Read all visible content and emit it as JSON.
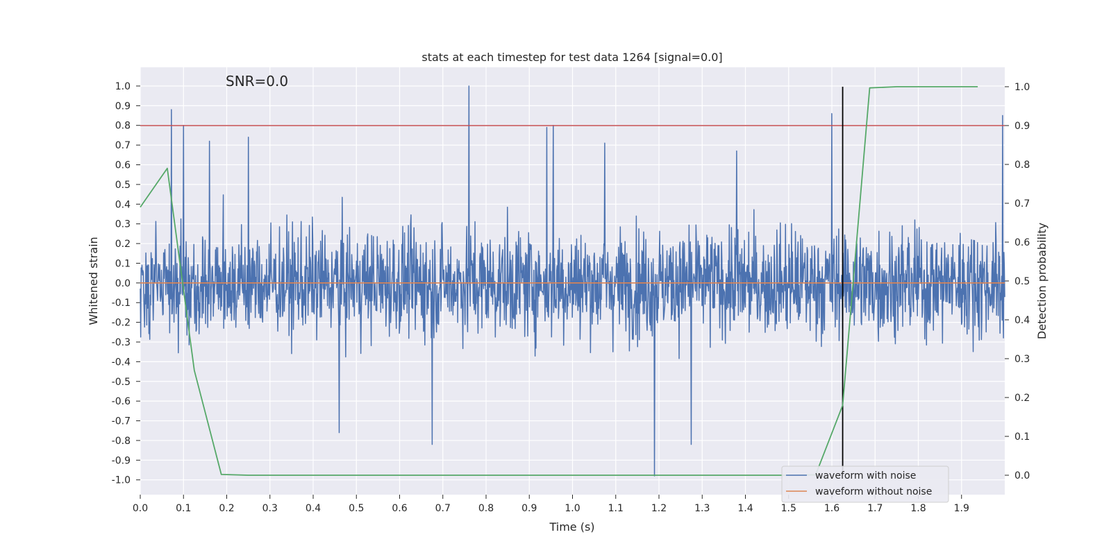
{
  "chart_data": {
    "type": "line",
    "title": "stats at each timestep for test data 1264 [signal=0.0]",
    "xlabel": "Time (s)",
    "ylabel": "Whitened strain",
    "y2label": "Detection probability",
    "annotation": "SNR=0.0",
    "xlim": [
      0.0,
      2.0
    ],
    "ylim": [
      -1.075,
      1.095
    ],
    "y2lim": [
      -0.05,
      1.05
    ],
    "x_ticks": [
      "0.0",
      "0.1",
      "0.2",
      "0.3",
      "0.4",
      "0.5",
      "0.6",
      "0.7",
      "0.8",
      "0.9",
      "1.0",
      "1.1",
      "1.2",
      "1.3",
      "1.4",
      "1.5",
      "1.6",
      "1.7",
      "1.8",
      "1.9"
    ],
    "y_ticks": [
      "1.0",
      "0.9",
      "0.8",
      "0.7",
      "0.6",
      "0.5",
      "0.4",
      "0.3",
      "0.2",
      "0.1",
      "0.0",
      "-0.1",
      "-0.2",
      "-0.3",
      "-0.4",
      "-0.5",
      "-0.6",
      "-0.7",
      "-0.8",
      "-0.9",
      "-1.0"
    ],
    "y2_ticks": [
      "0.0",
      "0.1",
      "0.2",
      "0.3",
      "0.4",
      "0.5",
      "0.6",
      "0.7",
      "0.8",
      "0.9",
      "1.0"
    ],
    "grid": true,
    "legend_position": "bottom-right",
    "threshold_line": {
      "y2": 0.9,
      "color": "#c44e52"
    },
    "vertical_marker": {
      "x": 1.625,
      "y2": [
        0.0,
        1.0
      ],
      "color": "#000000"
    },
    "series": [
      {
        "name": "waveform with noise",
        "color": "#4c72b0",
        "axis": "left",
        "note": "dense noise trace, ~2000 samples",
        "highlights": [
          {
            "x": 0.072,
            "y": 0.88
          },
          {
            "x": 0.1,
            "y": 0.8
          },
          {
            "x": 0.16,
            "y": 0.72
          },
          {
            "x": 0.25,
            "y": 0.74
          },
          {
            "x": 0.46,
            "y": -0.76
          },
          {
            "x": 0.675,
            "y": -0.82
          },
          {
            "x": 0.76,
            "y": 1.0
          },
          {
            "x": 0.94,
            "y": 0.79
          },
          {
            "x": 0.955,
            "y": 0.8
          },
          {
            "x": 1.075,
            "y": 0.71
          },
          {
            "x": 1.19,
            "y": -0.98
          },
          {
            "x": 1.275,
            "y": -0.82
          },
          {
            "x": 1.38,
            "y": 0.67
          },
          {
            "x": 1.6,
            "y": 0.86
          },
          {
            "x": 1.995,
            "y": 0.85
          }
        ]
      },
      {
        "name": "waveform without noise",
        "color": "#dd8452",
        "axis": "left",
        "x": [
          0.0,
          2.0
        ],
        "y": [
          0.0,
          0.0
        ]
      },
      {
        "name": "",
        "color": "#55a868",
        "axis": "right",
        "x": [
          0.0,
          0.0625,
          0.125,
          0.1875,
          0.25,
          0.3125,
          0.375,
          0.4375,
          0.5,
          0.5625,
          0.625,
          0.6875,
          0.75,
          0.8125,
          0.875,
          0.9375,
          1.0,
          1.0625,
          1.125,
          1.1875,
          1.25,
          1.3125,
          1.375,
          1.4375,
          1.5,
          1.5625,
          1.625,
          1.6875,
          1.75,
          1.8125,
          1.875,
          1.9375
        ],
        "y": [
          0.69,
          0.79,
          0.27,
          0.002,
          0.0,
          0.0,
          0.0,
          0.0,
          0.0,
          0.0,
          0.0,
          0.0,
          0.0,
          0.0,
          0.0,
          0.0,
          0.0,
          0.0,
          0.0,
          0.0,
          0.0,
          0.0,
          0.0,
          0.0,
          0.0,
          0.001,
          0.18,
          0.997,
          1.0,
          1.0,
          1.0,
          1.0
        ]
      }
    ]
  }
}
